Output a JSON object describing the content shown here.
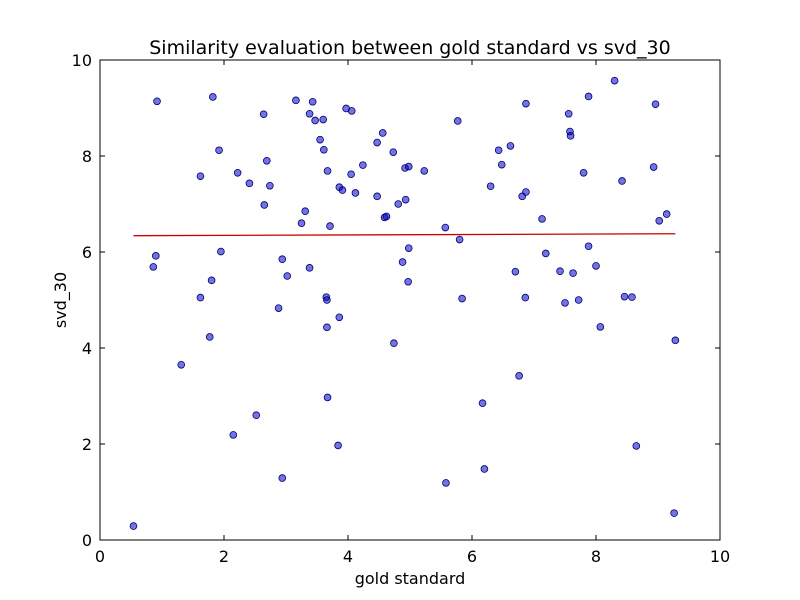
{
  "chart_data": {
    "type": "scatter",
    "title": "Similarity evaluation between gold standard vs svd_30",
    "xlabel": "gold standard",
    "ylabel": "svd_30",
    "xlim": [
      0,
      10
    ],
    "ylim": [
      0,
      10
    ],
    "xticks": [
      0,
      2,
      4,
      6,
      8,
      10
    ],
    "yticks": [
      0,
      2,
      4,
      6,
      8,
      10
    ],
    "xtick_labels": [
      "0",
      "2",
      "4",
      "6",
      "8",
      "10"
    ],
    "ytick_labels": [
      "0",
      "2",
      "4",
      "6",
      "8",
      "10"
    ],
    "grid": false,
    "colors": {
      "points": "#0000cc",
      "point_edge": "#00006e",
      "fit_line": "#cc0000"
    },
    "points": [
      {
        "x": 0.54,
        "y": 0.29
      },
      {
        "x": 0.86,
        "y": 5.69
      },
      {
        "x": 0.9,
        "y": 5.92
      },
      {
        "x": 0.92,
        "y": 9.14
      },
      {
        "x": 1.31,
        "y": 3.65
      },
      {
        "x": 1.62,
        "y": 7.58
      },
      {
        "x": 1.62,
        "y": 5.05
      },
      {
        "x": 1.77,
        "y": 4.23
      },
      {
        "x": 1.8,
        "y": 5.41
      },
      {
        "x": 1.82,
        "y": 9.23
      },
      {
        "x": 1.92,
        "y": 8.12
      },
      {
        "x": 1.95,
        "y": 6.01
      },
      {
        "x": 2.15,
        "y": 2.19
      },
      {
        "x": 2.22,
        "y": 7.65
      },
      {
        "x": 2.41,
        "y": 7.43
      },
      {
        "x": 2.52,
        "y": 2.6
      },
      {
        "x": 2.64,
        "y": 8.87
      },
      {
        "x": 2.65,
        "y": 6.98
      },
      {
        "x": 2.69,
        "y": 7.9
      },
      {
        "x": 2.74,
        "y": 7.38
      },
      {
        "x": 2.88,
        "y": 4.83
      },
      {
        "x": 2.94,
        "y": 5.85
      },
      {
        "x": 2.94,
        "y": 1.29
      },
      {
        "x": 3.02,
        "y": 5.5
      },
      {
        "x": 3.16,
        "y": 9.16
      },
      {
        "x": 3.25,
        "y": 6.6
      },
      {
        "x": 3.31,
        "y": 6.85
      },
      {
        "x": 3.38,
        "y": 5.67
      },
      {
        "x": 3.38,
        "y": 8.88
      },
      {
        "x": 3.43,
        "y": 9.13
      },
      {
        "x": 3.47,
        "y": 8.74
      },
      {
        "x": 3.55,
        "y": 8.34
      },
      {
        "x": 3.6,
        "y": 8.76
      },
      {
        "x": 3.61,
        "y": 8.13
      },
      {
        "x": 3.65,
        "y": 5.06
      },
      {
        "x": 3.66,
        "y": 5.0
      },
      {
        "x": 3.66,
        "y": 4.43
      },
      {
        "x": 3.67,
        "y": 2.97
      },
      {
        "x": 3.67,
        "y": 7.69
      },
      {
        "x": 3.71,
        "y": 6.54
      },
      {
        "x": 3.84,
        "y": 1.97
      },
      {
        "x": 3.86,
        "y": 4.64
      },
      {
        "x": 3.86,
        "y": 7.35
      },
      {
        "x": 3.91,
        "y": 7.29
      },
      {
        "x": 3.97,
        "y": 8.99
      },
      {
        "x": 4.05,
        "y": 7.62
      },
      {
        "x": 4.06,
        "y": 8.94
      },
      {
        "x": 4.12,
        "y": 7.23
      },
      {
        "x": 4.24,
        "y": 7.81
      },
      {
        "x": 4.47,
        "y": 8.28
      },
      {
        "x": 4.47,
        "y": 7.16
      },
      {
        "x": 4.56,
        "y": 8.48
      },
      {
        "x": 4.59,
        "y": 6.72
      },
      {
        "x": 4.62,
        "y": 6.74
      },
      {
        "x": 4.73,
        "y": 8.08
      },
      {
        "x": 4.74,
        "y": 4.1
      },
      {
        "x": 4.81,
        "y": 7.0
      },
      {
        "x": 4.88,
        "y": 5.79
      },
      {
        "x": 4.92,
        "y": 7.75
      },
      {
        "x": 4.93,
        "y": 7.09
      },
      {
        "x": 4.97,
        "y": 5.38
      },
      {
        "x": 4.98,
        "y": 7.78
      },
      {
        "x": 4.98,
        "y": 6.08
      },
      {
        "x": 5.23,
        "y": 7.69
      },
      {
        "x": 5.57,
        "y": 6.51
      },
      {
        "x": 5.58,
        "y": 1.19
      },
      {
        "x": 5.77,
        "y": 8.73
      },
      {
        "x": 5.8,
        "y": 6.26
      },
      {
        "x": 5.84,
        "y": 5.03
      },
      {
        "x": 6.17,
        "y": 2.85
      },
      {
        "x": 6.2,
        "y": 1.48
      },
      {
        "x": 6.3,
        "y": 7.37
      },
      {
        "x": 6.43,
        "y": 8.12
      },
      {
        "x": 6.48,
        "y": 7.82
      },
      {
        "x": 6.62,
        "y": 8.21
      },
      {
        "x": 6.7,
        "y": 5.59
      },
      {
        "x": 6.76,
        "y": 3.42
      },
      {
        "x": 6.81,
        "y": 7.16
      },
      {
        "x": 6.86,
        "y": 5.05
      },
      {
        "x": 6.87,
        "y": 9.09
      },
      {
        "x": 6.87,
        "y": 7.25
      },
      {
        "x": 7.13,
        "y": 6.69
      },
      {
        "x": 7.19,
        "y": 5.97
      },
      {
        "x": 7.42,
        "y": 5.6
      },
      {
        "x": 7.5,
        "y": 4.94
      },
      {
        "x": 7.56,
        "y": 8.88
      },
      {
        "x": 7.58,
        "y": 8.51
      },
      {
        "x": 7.59,
        "y": 8.42
      },
      {
        "x": 7.63,
        "y": 5.56
      },
      {
        "x": 7.72,
        "y": 5.0
      },
      {
        "x": 7.8,
        "y": 7.65
      },
      {
        "x": 7.88,
        "y": 9.24
      },
      {
        "x": 7.88,
        "y": 6.12
      },
      {
        "x": 8.0,
        "y": 5.71
      },
      {
        "x": 8.07,
        "y": 4.44
      },
      {
        "x": 8.3,
        "y": 9.57
      },
      {
        "x": 8.42,
        "y": 7.48
      },
      {
        "x": 8.46,
        "y": 5.07
      },
      {
        "x": 8.58,
        "y": 5.06
      },
      {
        "x": 8.65,
        "y": 1.96
      },
      {
        "x": 8.93,
        "y": 7.77
      },
      {
        "x": 8.96,
        "y": 9.08
      },
      {
        "x": 9.02,
        "y": 6.65
      },
      {
        "x": 9.14,
        "y": 6.79
      },
      {
        "x": 9.26,
        "y": 0.56
      },
      {
        "x": 9.28,
        "y": 4.16
      }
    ],
    "fit_line": {
      "x": [
        0.54,
        9.28
      ],
      "y": [
        6.34,
        6.38
      ]
    }
  }
}
